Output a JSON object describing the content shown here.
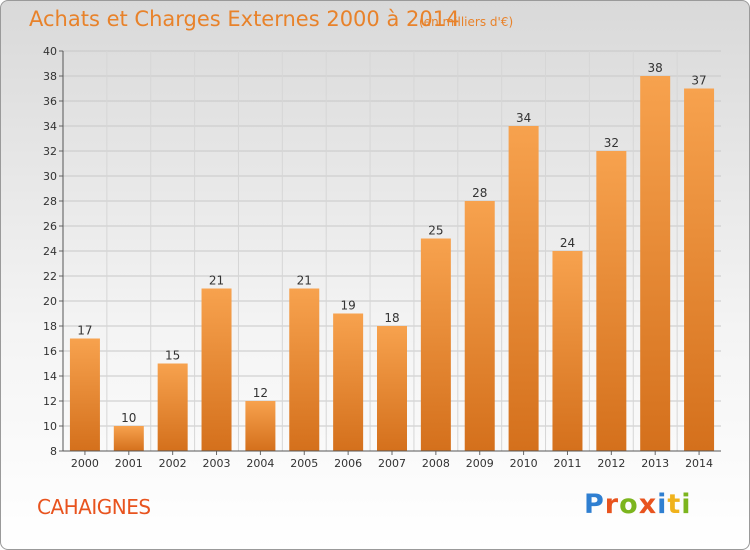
{
  "header": {
    "title": "Achats et Charges Externes 2000 à 2014",
    "unit": "(en milliers d'€)"
  },
  "footer": {
    "commune": "CAHAIGNES",
    "brand_letters": [
      {
        "ch": "P",
        "color": "#2f7fd1"
      },
      {
        "ch": "r",
        "color": "#e8531e"
      },
      {
        "ch": "o",
        "color": "#7cb51e"
      },
      {
        "ch": "x",
        "color": "#e8531e"
      },
      {
        "ch": "i",
        "color": "#2f7fd1"
      },
      {
        "ch": "t",
        "color": "#f0b21c"
      },
      {
        "ch": "i",
        "color": "#7cb51e"
      }
    ]
  },
  "chart_data": {
    "type": "bar",
    "categories": [
      "2000",
      "2001",
      "2002",
      "2003",
      "2004",
      "2005",
      "2006",
      "2007",
      "2008",
      "2009",
      "2010",
      "2011",
      "2012",
      "2013",
      "2014"
    ],
    "values": [
      17,
      10,
      15,
      21,
      12,
      21,
      19,
      18,
      25,
      28,
      34,
      24,
      32,
      38,
      37
    ],
    "ylim": [
      8,
      40
    ],
    "yticks": [
      8,
      10,
      12,
      14,
      16,
      18,
      20,
      22,
      24,
      26,
      28,
      30,
      32,
      34,
      36,
      38,
      40
    ],
    "grid": true,
    "bar_color_top": "#f7a24e",
    "bar_color_bottom": "#d4701c",
    "title": "Achats et Charges Externes 2000 à 2014",
    "ylabel": "",
    "xlabel": ""
  }
}
